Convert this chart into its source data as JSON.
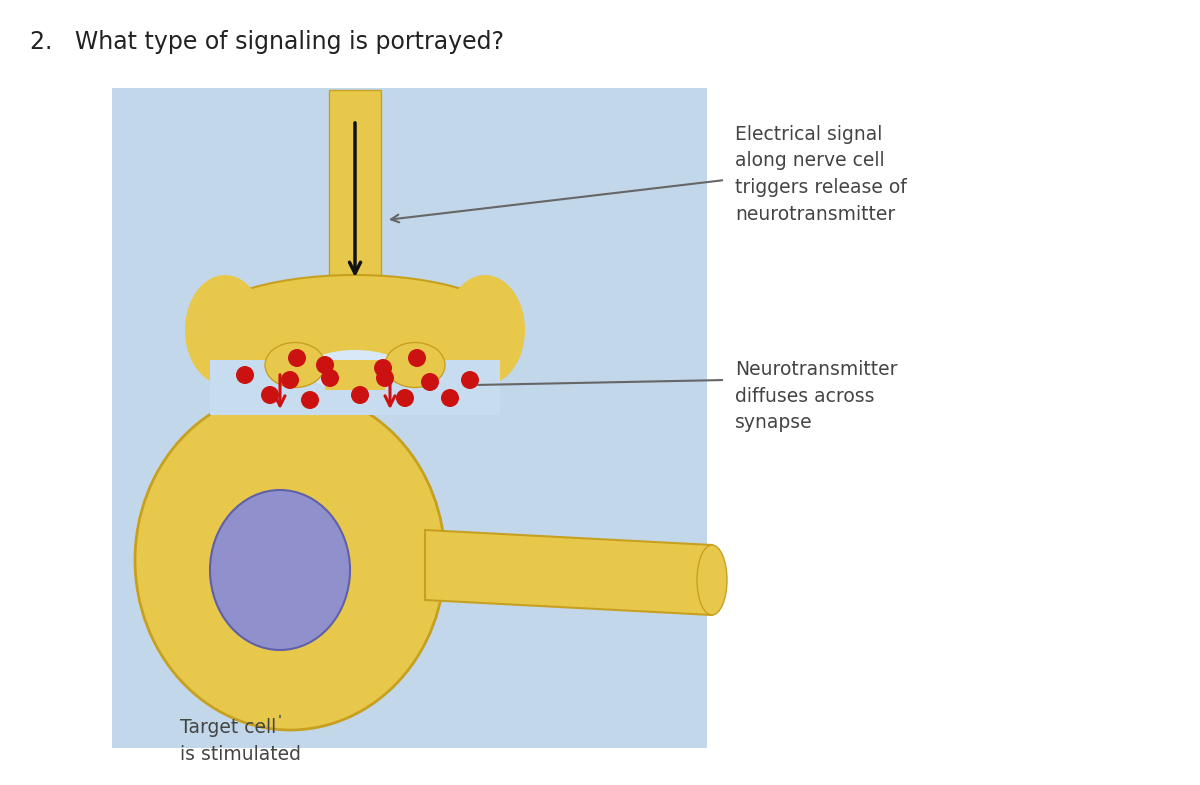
{
  "title": "2.   What type of signaling is portrayed?",
  "title_fontsize": 17,
  "title_color": "#222222",
  "bg_color": "#ffffff",
  "panel_bg": "#c2d8ea",
  "neuron_color": "#e8c84a",
  "neuron_edge": "#c8a020",
  "cleft_color": "#ddeeff",
  "nucleus_color": "#9090cc",
  "nucleus_edge": "#6060aa",
  "dot_color": "#cc1111",
  "arrow_red": "#cc1111",
  "arrow_black": "#111111",
  "label_color": "#444444",
  "label1": "Electrical signal\nalong nerve cell\ntriggers release of\nneurotransmitter",
  "label2": "Neurotransmitter\ndiffuses across\nsynapse",
  "label3": "Target cell\nis stimulated",
  "label_fontsize": 13.5
}
